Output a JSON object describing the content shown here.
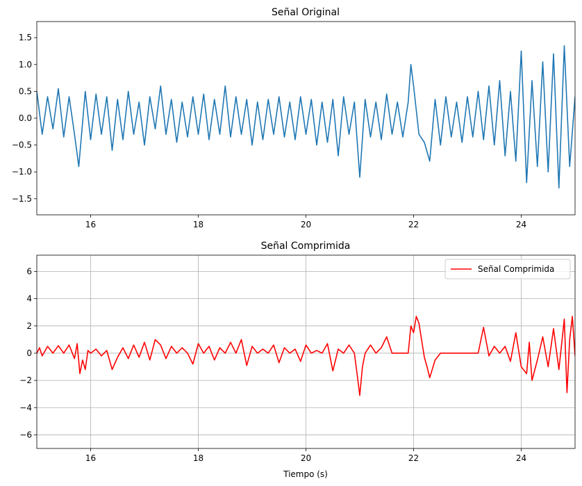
{
  "chart_data": [
    {
      "type": "line",
      "title": "Señal Original",
      "xlabel": "",
      "ylabel": "",
      "xlim": [
        15,
        25
      ],
      "ylim": [
        -1.8,
        1.8
      ],
      "xticks": [
        16,
        18,
        20,
        22,
        24
      ],
      "xtick_labels": [
        "16",
        "18",
        "20",
        "22",
        "24"
      ],
      "yticks": [
        -1.5,
        -1.0,
        -0.5,
        0.0,
        0.5,
        1.0,
        1.5
      ],
      "ytick_labels": [
        "−1.5",
        "−1.0",
        "−0.5",
        "0.0",
        "0.5",
        "1.0",
        "1.5"
      ],
      "grid": false,
      "legend": null,
      "series": [
        {
          "color": "#1f77b4",
          "x": [
            15.0,
            15.1,
            15.2,
            15.3,
            15.4,
            15.5,
            15.6,
            15.7,
            15.78,
            15.9,
            16.0,
            16.1,
            16.2,
            16.3,
            16.4,
            16.5,
            16.6,
            16.7,
            16.8,
            16.9,
            17.0,
            17.1,
            17.2,
            17.3,
            17.4,
            17.5,
            17.6,
            17.7,
            17.8,
            17.9,
            18.0,
            18.1,
            18.2,
            18.3,
            18.4,
            18.5,
            18.6,
            18.7,
            18.8,
            18.9,
            19.0,
            19.1,
            19.2,
            19.3,
            19.4,
            19.5,
            19.6,
            19.7,
            19.8,
            19.9,
            20.0,
            20.1,
            20.2,
            20.3,
            20.4,
            20.5,
            20.6,
            20.7,
            20.8,
            20.9,
            21.0,
            21.1,
            21.2,
            21.3,
            21.4,
            21.5,
            21.6,
            21.7,
            21.8,
            21.9,
            21.95,
            22.0,
            22.1,
            22.2,
            22.3,
            22.4,
            22.5,
            22.6,
            22.7,
            22.8,
            22.9,
            23.0,
            23.1,
            23.2,
            23.3,
            23.4,
            23.5,
            23.6,
            23.7,
            23.8,
            23.9,
            24.0,
            24.1,
            24.2,
            24.3,
            24.4,
            24.5,
            24.6,
            24.7,
            24.8,
            24.9,
            25.0
          ],
          "y": [
            0.5,
            -0.3,
            0.4,
            -0.2,
            0.55,
            -0.35,
            0.4,
            -0.3,
            -0.9,
            0.5,
            -0.4,
            0.45,
            -0.3,
            0.4,
            -0.6,
            0.35,
            -0.4,
            0.5,
            -0.3,
            0.3,
            -0.5,
            0.4,
            -0.2,
            0.6,
            -0.3,
            0.35,
            -0.45,
            0.3,
            -0.35,
            0.4,
            -0.3,
            0.45,
            -0.4,
            0.35,
            -0.3,
            0.6,
            -0.35,
            0.4,
            -0.3,
            0.35,
            -0.5,
            0.3,
            -0.4,
            0.35,
            -0.3,
            0.4,
            -0.35,
            0.3,
            -0.4,
            0.4,
            -0.3,
            0.35,
            -0.5,
            0.3,
            -0.45,
            0.35,
            -0.7,
            0.4,
            -0.3,
            0.3,
            -1.1,
            0.35,
            -0.35,
            0.3,
            -0.4,
            0.45,
            -0.3,
            0.3,
            -0.35,
            0.3,
            1.0,
            0.6,
            -0.3,
            -0.45,
            -0.8,
            0.35,
            -0.5,
            0.4,
            -0.35,
            0.3,
            -0.45,
            0.4,
            -0.35,
            0.5,
            -0.4,
            0.6,
            -0.5,
            0.7,
            -0.7,
            0.5,
            -0.8,
            1.25,
            -1.2,
            0.7,
            -0.9,
            1.05,
            -1.0,
            1.2,
            -1.3,
            1.35,
            -0.9,
            0.4
          ]
        }
      ]
    },
    {
      "type": "line",
      "title": "Señal Comprimida",
      "xlabel": "Tiempo (s)",
      "ylabel": "",
      "xlim": [
        15,
        25
      ],
      "ylim": [
        -7,
        7.2
      ],
      "xticks": [
        16,
        18,
        20,
        22,
        24
      ],
      "xtick_labels": [
        "16",
        "18",
        "20",
        "22",
        "24"
      ],
      "yticks": [
        -6,
        -4,
        -2,
        0,
        2,
        4,
        6
      ],
      "ytick_labels": [
        "−6",
        "−4",
        "−2",
        "0",
        "2",
        "4",
        "6"
      ],
      "grid": true,
      "legend": "top-right",
      "series": [
        {
          "name": "Señal Comprimida",
          "color": "#ff0000",
          "x": [
            15.0,
            15.05,
            15.1,
            15.2,
            15.3,
            15.4,
            15.5,
            15.6,
            15.7,
            15.75,
            15.8,
            15.85,
            15.9,
            15.95,
            16.0,
            16.1,
            16.2,
            16.3,
            16.4,
            16.5,
            16.6,
            16.7,
            16.8,
            16.9,
            17.0,
            17.1,
            17.2,
            17.3,
            17.4,
            17.5,
            17.6,
            17.7,
            17.8,
            17.9,
            18.0,
            18.1,
            18.2,
            18.3,
            18.4,
            18.5,
            18.6,
            18.7,
            18.8,
            18.9,
            19.0,
            19.1,
            19.2,
            19.3,
            19.4,
            19.5,
            19.6,
            19.7,
            19.8,
            19.9,
            20.0,
            20.1,
            20.2,
            20.3,
            20.4,
            20.5,
            20.6,
            20.7,
            20.8,
            20.9,
            20.95,
            21.0,
            21.05,
            21.1,
            21.2,
            21.3,
            21.4,
            21.5,
            21.6,
            21.7,
            21.8,
            21.9,
            21.95,
            22.0,
            22.05,
            22.1,
            22.2,
            22.25,
            22.3,
            22.4,
            22.5,
            22.6,
            22.7,
            22.8,
            22.9,
            23.0,
            23.1,
            23.2,
            23.3,
            23.4,
            23.5,
            23.6,
            23.7,
            23.8,
            23.9,
            24.0,
            24.1,
            24.15,
            24.2,
            24.3,
            24.4,
            24.5,
            24.6,
            24.7,
            24.8,
            24.85,
            24.9,
            24.95,
            25.0
          ],
          "y": [
            0,
            0.4,
            -0.2,
            0.5,
            0,
            0.55,
            0,
            0.6,
            -0.4,
            0.7,
            -1.5,
            -0.5,
            -1.2,
            0.2,
            0,
            0.3,
            -0.2,
            0.2,
            -1.2,
            -0.3,
            0.4,
            -0.4,
            0.6,
            -0.3,
            0.8,
            -0.5,
            1.0,
            0.6,
            -0.4,
            0.5,
            0,
            0.4,
            0,
            -0.8,
            0.7,
            0,
            0.5,
            -0.5,
            0.4,
            0,
            0.8,
            0,
            1.0,
            -0.9,
            0.5,
            0,
            0.3,
            0,
            0.6,
            -0.7,
            0.4,
            0,
            0.3,
            -0.6,
            0.6,
            0,
            0.2,
            0,
            0.7,
            -1.3,
            0.3,
            0,
            0.6,
            0,
            -1.5,
            -3.1,
            -1.0,
            0,
            0.6,
            0,
            0.4,
            1.2,
            0,
            0,
            0,
            0,
            2.0,
            1.5,
            2.7,
            2.2,
            -0.3,
            -1.0,
            -1.8,
            -0.5,
            0,
            0,
            0,
            0,
            0,
            0,
            0,
            0,
            1.9,
            -0.2,
            0.5,
            0,
            0.5,
            -0.6,
            1.5,
            -1.0,
            -1.5,
            0.8,
            -2.0,
            -0.5,
            1.2,
            -1.0,
            1.8,
            -1.2,
            2.5,
            -2.9,
            1.0,
            2.7,
            -0.2
          ]
        }
      ]
    }
  ]
}
